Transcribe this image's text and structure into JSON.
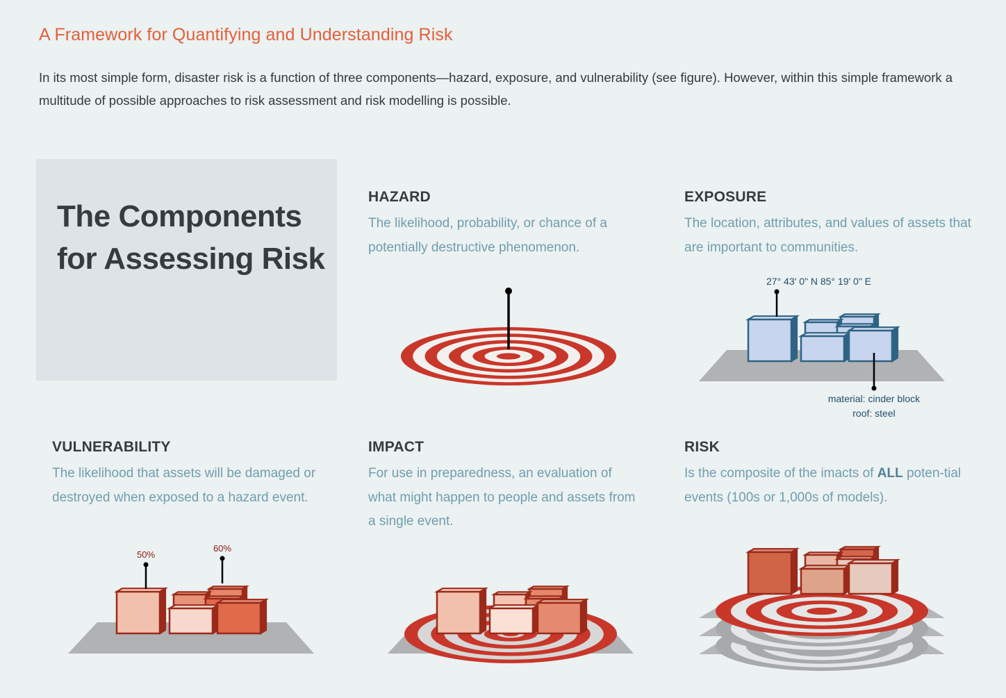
{
  "header": {
    "title": "A Framework for Quantifying and Understanding Risk",
    "intro": "In its most simple form, disaster risk is a function of three components—hazard, exposure, and vulnerability (see figure). However, within this simple framework a multitude of possible approaches to risk assessment and risk modelling is possible."
  },
  "title_box": {
    "heading": "The Components for Assessing Risk"
  },
  "sections": {
    "hazard": {
      "title": "HAZARD",
      "desc": "The likelihood, probability, or chance of a potentially destructive phenomenon."
    },
    "exposure": {
      "title": "EXPOSURE",
      "desc": "The location, attributes, and values of assets that are important to communities.",
      "coordinate_label": "27° 43' 0\" N 85° 19' 0\"   E",
      "material_label": "material: cinder block",
      "roof_label": "roof: steel"
    },
    "vulnerability": {
      "title": "VULNERABILITY",
      "desc": "The likelihood that assets will be damaged or destroyed when exposed to a hazard event.",
      "label_a": "50%",
      "label_b": "60%"
    },
    "impact": {
      "title": "IMPACT",
      "desc": "For use in preparedness, an evaluation of what might happen to people and assets from a single event."
    },
    "risk": {
      "title": "RISK",
      "desc_before": "Is the composite of the imacts of ",
      "desc_bold": "ALL",
      "desc_after": " poten-tial events (100s or 1,000s of models)."
    }
  },
  "colors": {
    "title_orange": "#e2603a",
    "heading_dark": "#383b3d",
    "desc_blue": "#6f9eb1",
    "target_red": "#c8372a",
    "building_blue_fill": "#c8d5ee",
    "building_blue_stroke": "#2e6383",
    "building_red_stroke": "#9b2a1a",
    "ground_gray": "#b0b2b4"
  }
}
